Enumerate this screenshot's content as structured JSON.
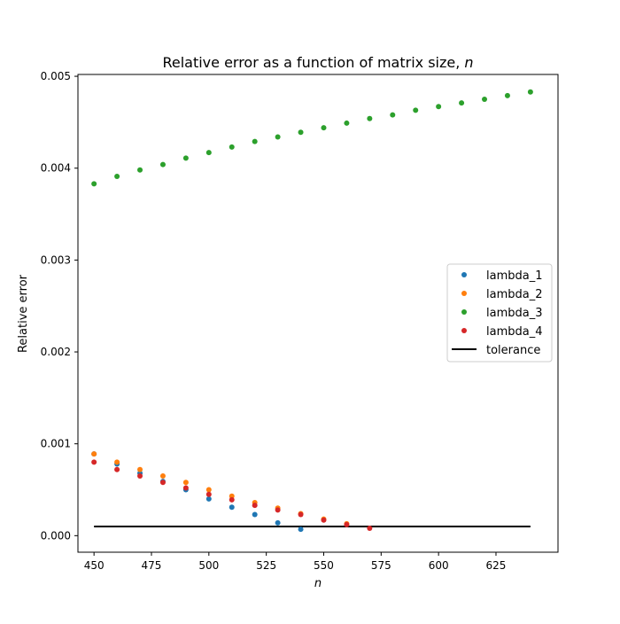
{
  "chart_data": {
    "type": "scatter",
    "title_main": "Relative error as a function of matrix size, ",
    "title_var": "n",
    "xlabel": "n",
    "ylabel": "Relative error",
    "xlim": [
      443,
      652
    ],
    "ylim": [
      -0.00018,
      0.00502
    ],
    "x_ticks": [
      450,
      475,
      500,
      525,
      550,
      575,
      600,
      625
    ],
    "x_tick_labels": [
      "450",
      "475",
      "500",
      "525",
      "550",
      "575",
      "600",
      "625"
    ],
    "y_ticks": [
      0,
      0.001,
      0.002,
      0.003,
      0.004,
      0.005
    ],
    "y_tick_labels": [
      "0.000",
      "0.001",
      "0.002",
      "0.003",
      "0.004",
      "0.005"
    ],
    "legend_position": "center-right",
    "grid": false,
    "series": [
      {
        "name": "lambda_1",
        "color": "#1f77b4",
        "x": [
          450,
          460,
          470,
          480,
          490,
          500,
          510,
          520,
          530,
          540
        ],
        "y": [
          0.00089,
          0.00078,
          0.00068,
          0.00059,
          0.0005,
          0.0004,
          0.00031,
          0.00023,
          0.00014,
          7e-05
        ]
      },
      {
        "name": "lambda_2",
        "color": "#ff7f0e",
        "x": [
          450,
          460,
          470,
          480,
          490,
          500,
          510,
          520,
          530,
          540,
          550,
          560
        ],
        "y": [
          0.00089,
          0.0008,
          0.00072,
          0.00065,
          0.00058,
          0.0005,
          0.00043,
          0.00036,
          0.0003,
          0.00024,
          0.00018,
          0.00013
        ]
      },
      {
        "name": "lambda_3",
        "color": "#2ca02c",
        "x": [
          450,
          460,
          470,
          480,
          490,
          500,
          510,
          520,
          530,
          540,
          550,
          560,
          570,
          580,
          590,
          600,
          610,
          620,
          630,
          640
        ],
        "y": [
          0.00383,
          0.00391,
          0.00398,
          0.00404,
          0.00411,
          0.00417,
          0.00423,
          0.00429,
          0.00434,
          0.00439,
          0.00444,
          0.00449,
          0.00454,
          0.00458,
          0.00463,
          0.00467,
          0.00471,
          0.00475,
          0.00479,
          0.00483
        ]
      },
      {
        "name": "lambda_4",
        "color": "#d62728",
        "x": [
          450,
          460,
          470,
          480,
          490,
          500,
          510,
          520,
          530,
          540,
          550,
          560,
          570
        ],
        "y": [
          0.0008,
          0.00072,
          0.00065,
          0.00058,
          0.00052,
          0.00045,
          0.00039,
          0.00033,
          0.00028,
          0.00023,
          0.00017,
          0.00012,
          8e-05
        ]
      }
    ],
    "tolerance": {
      "name": "tolerance",
      "color": "#000000",
      "x": [
        450,
        640
      ],
      "y": [
        0.0001,
        0.0001
      ]
    }
  }
}
